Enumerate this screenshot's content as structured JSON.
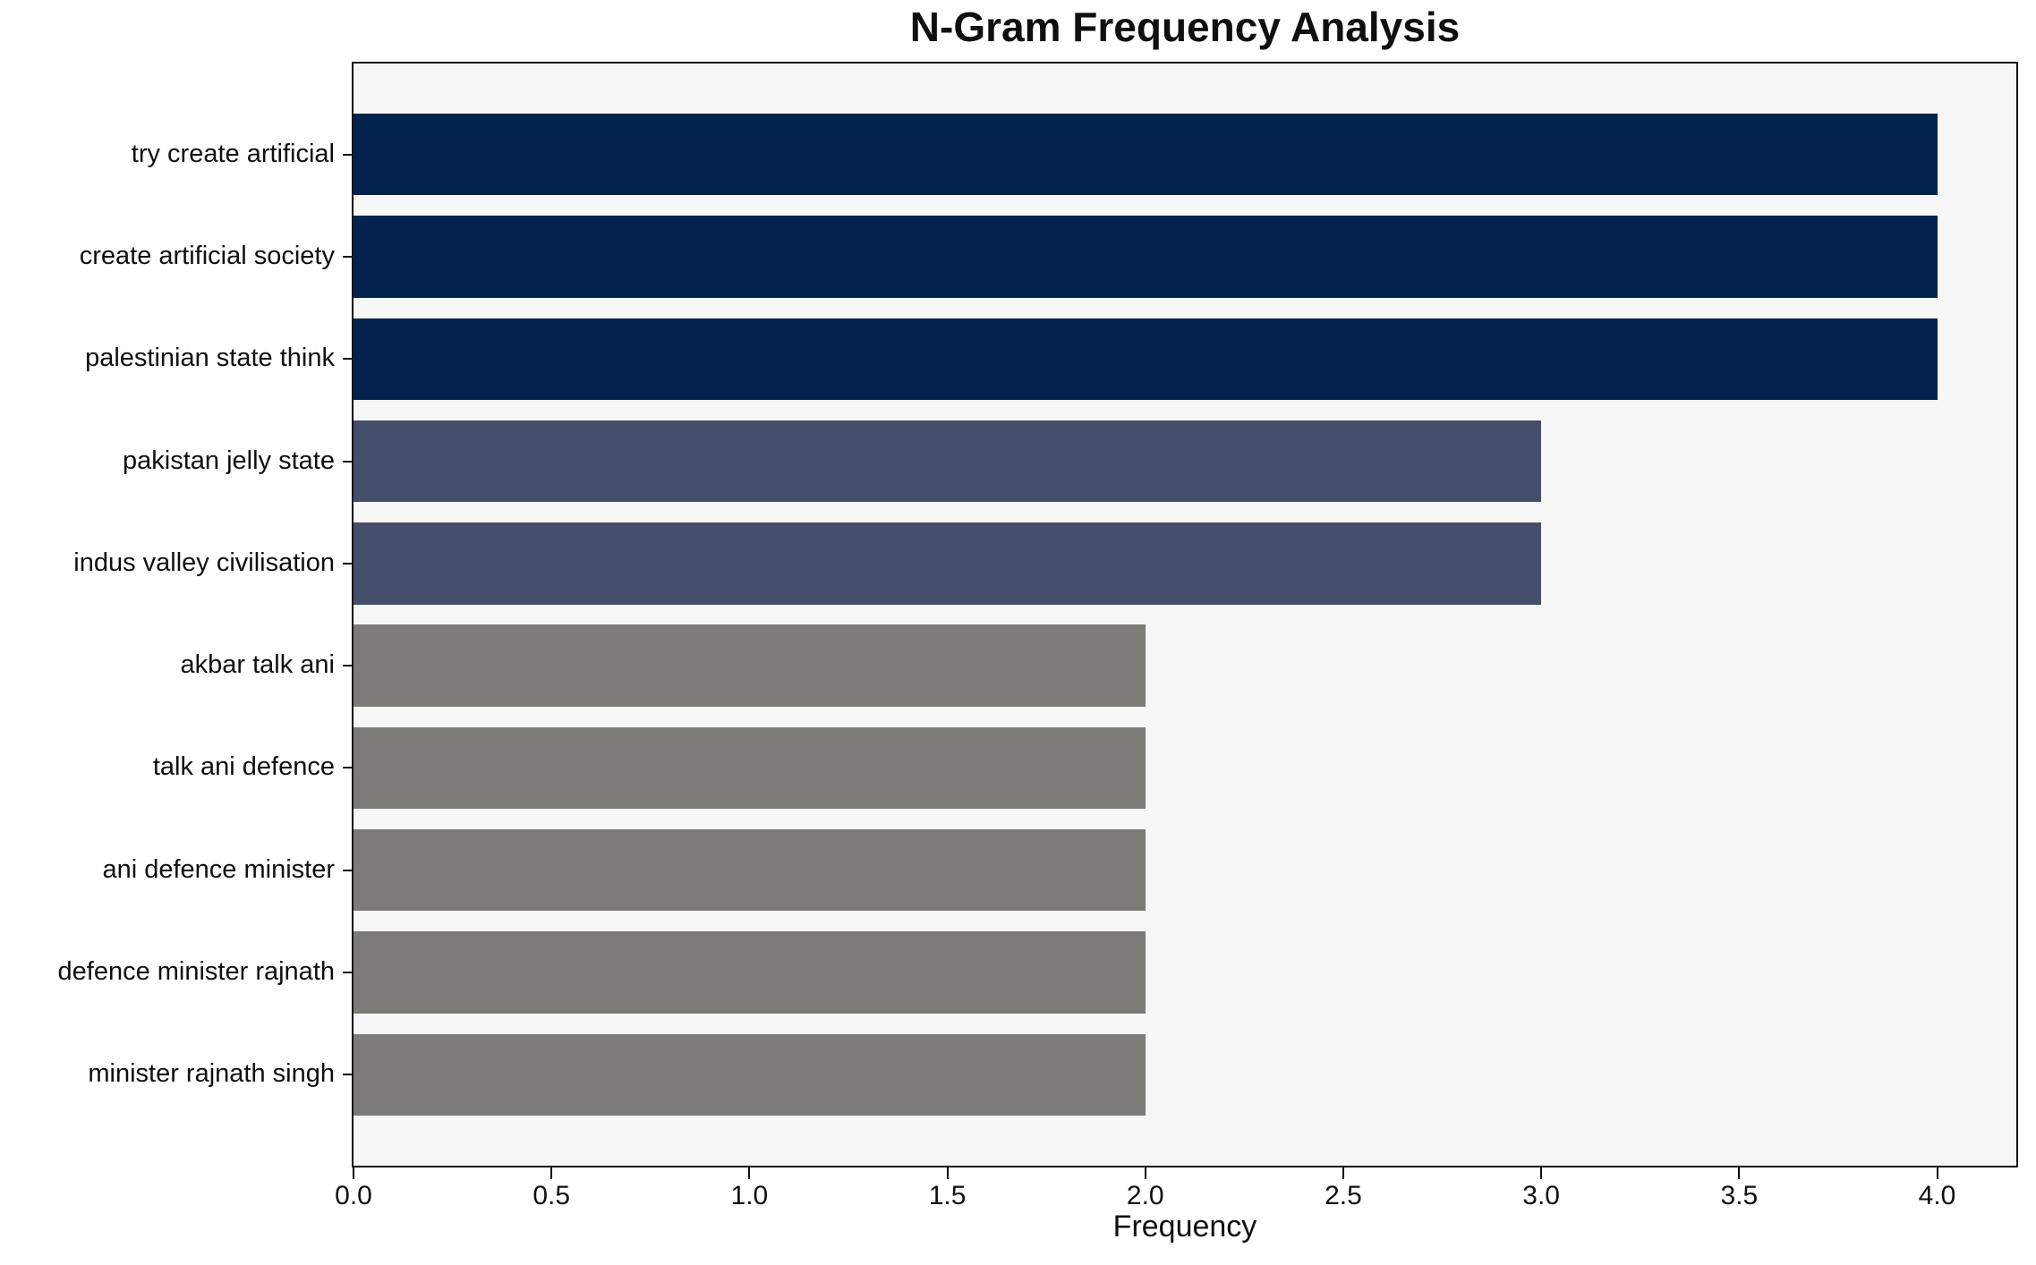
{
  "title": "N-Gram Frequency Analysis",
  "chart_data": {
    "type": "bar",
    "orientation": "horizontal",
    "title": "N-Gram Frequency Analysis",
    "xlabel": "Frequency",
    "ylabel": "",
    "xlim": [
      0,
      4.2
    ],
    "grid": false,
    "legend": "none",
    "categories": [
      "try create artificial",
      "create artificial society",
      "palestinian state think",
      "pakistan jelly state",
      "indus valley civilisation",
      "akbar talk ani",
      "talk ani defence",
      "ani defence minister",
      "defence minister rajnath",
      "minister rajnath singh"
    ],
    "values": [
      4,
      4,
      4,
      3,
      3,
      2,
      2,
      2,
      2,
      2
    ],
    "bar_colors": [
      "#02234e",
      "#02234e",
      "#02234e",
      "#454f6c",
      "#454f6c",
      "#7c7b78",
      "#7c7b78",
      "#7c7b78",
      "#7c7b78",
      "#7c7b78"
    ],
    "xticks": [
      {
        "value": 0.0,
        "label": "0.0"
      },
      {
        "value": 0.5,
        "label": "0.5"
      },
      {
        "value": 1.0,
        "label": "1.0"
      },
      {
        "value": 1.5,
        "label": "1.5"
      },
      {
        "value": 2.0,
        "label": "2.0"
      },
      {
        "value": 2.5,
        "label": "2.5"
      },
      {
        "value": 3.0,
        "label": "3.0"
      },
      {
        "value": 3.5,
        "label": "3.5"
      },
      {
        "value": 4.0,
        "label": "4.0"
      }
    ],
    "colors": {
      "plot_background": "#f7f7f8",
      "figure_background": "#ffffff",
      "axis": "#0f0f0f",
      "text": "#0f0f0f"
    }
  }
}
